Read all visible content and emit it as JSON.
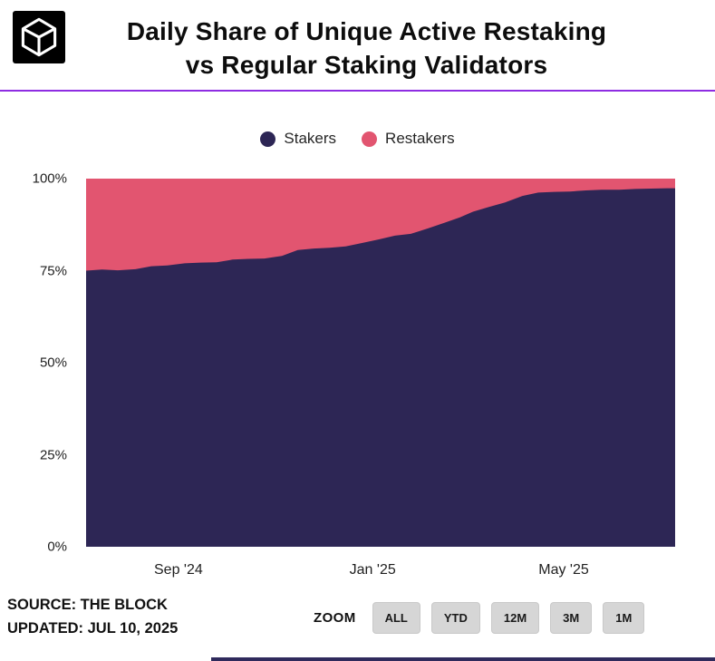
{
  "header": {
    "title_line1": "Daily Share of Unique Active Restaking",
    "title_line2": "vs Regular Staking Validators"
  },
  "legend": [
    {
      "label": "Stakers",
      "color": "#2d2655"
    },
    {
      "label": "Restakers",
      "color": "#e25570"
    }
  ],
  "colors": {
    "stakers": "#2d2655",
    "restakers": "#e25570",
    "accent_divider": "#8e2de2",
    "button_bg": "#d6d6d6"
  },
  "footer": {
    "source": "SOURCE: THE BLOCK",
    "updated": "UPDATED: JUL 10, 2025",
    "zoom_label": "ZOOM",
    "zoom_buttons": [
      "ALL",
      "YTD",
      "12M",
      "3M",
      "1M"
    ]
  },
  "chart_data": {
    "type": "area",
    "stacked_percent": true,
    "title": "Daily Share of Unique Active Restaking vs Regular Staking Validators",
    "xlabel": "",
    "ylabel": "",
    "ylim": [
      0,
      100
    ],
    "grid": false,
    "legend_position": "top",
    "yticks": [
      "0%",
      "25%",
      "50%",
      "75%",
      "100%"
    ],
    "ytick_values": [
      0,
      25,
      50,
      75,
      100
    ],
    "xticks": [
      {
        "label": "Sep '24",
        "date": "2024-09-01"
      },
      {
        "label": "Jan '25",
        "date": "2025-01-01"
      },
      {
        "label": "May '25",
        "date": "2025-05-01"
      }
    ],
    "x": [
      "2024-07-05",
      "2024-07-15",
      "2024-07-25",
      "2024-08-05",
      "2024-08-15",
      "2024-08-25",
      "2024-09-05",
      "2024-09-15",
      "2024-09-25",
      "2024-10-05",
      "2024-10-15",
      "2024-10-25",
      "2024-11-05",
      "2024-11-15",
      "2024-11-25",
      "2024-12-05",
      "2024-12-15",
      "2024-12-25",
      "2025-01-05",
      "2025-01-15",
      "2025-01-25",
      "2025-02-05",
      "2025-02-15",
      "2025-02-25",
      "2025-03-05",
      "2025-03-15",
      "2025-03-25",
      "2025-04-05",
      "2025-04-15",
      "2025-04-25",
      "2025-05-05",
      "2025-05-15",
      "2025-05-25",
      "2025-06-05",
      "2025-06-15",
      "2025-06-25",
      "2025-07-05",
      "2025-07-10"
    ],
    "series": [
      {
        "name": "Stakers",
        "color": "#2d2655",
        "values": [
          75.0,
          75.3,
          75.1,
          75.4,
          76.2,
          76.4,
          77.0,
          77.2,
          77.3,
          78.0,
          78.2,
          78.3,
          79.0,
          80.6,
          81.0,
          81.2,
          81.6,
          82.5,
          83.5,
          84.5,
          85.0,
          86.5,
          88.0,
          89.5,
          91.0,
          92.3,
          93.5,
          95.3,
          96.2,
          96.4,
          96.5,
          96.8,
          97.0,
          97.0,
          97.2,
          97.3,
          97.4,
          97.4
        ]
      },
      {
        "name": "Restakers",
        "color": "#e25570",
        "values": [
          25.0,
          24.7,
          24.9,
          24.6,
          23.8,
          23.6,
          23.0,
          22.8,
          22.7,
          22.0,
          21.8,
          21.7,
          21.0,
          19.4,
          19.0,
          18.8,
          18.4,
          17.5,
          16.5,
          15.5,
          15.0,
          13.5,
          12.0,
          10.5,
          9.0,
          7.7,
          6.5,
          4.7,
          3.8,
          3.6,
          3.5,
          3.2,
          3.0,
          3.0,
          2.8,
          2.7,
          2.6,
          2.6
        ]
      }
    ]
  }
}
